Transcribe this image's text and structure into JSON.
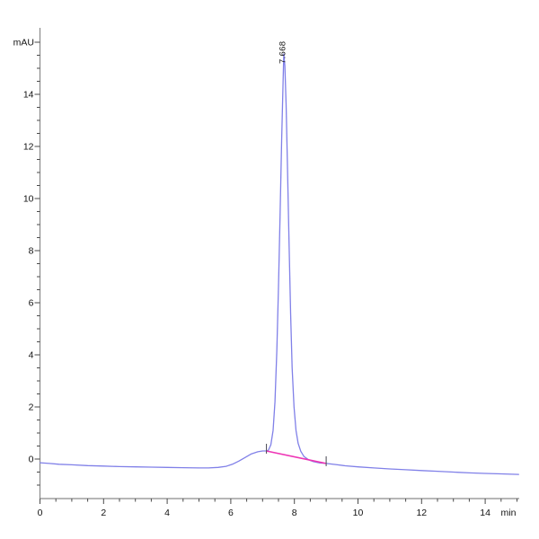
{
  "window": {
    "background_color": "#ffffff",
    "description": "HPLC chromatogram trace with single main peak"
  },
  "chart_data": {
    "type": "line",
    "title": "",
    "xlabel": "min",
    "ylabel": "mAU",
    "xlim": [
      0,
      15.2
    ],
    "ylim": [
      -1.7,
      16.3
    ],
    "x_major_ticks": [
      0,
      2,
      4,
      6,
      8,
      10,
      12,
      14
    ],
    "x_minor_step": 0.5,
    "y_major_ticks": [
      0,
      2,
      4,
      6,
      8,
      10,
      12,
      14
    ],
    "y_top_unlabeled_tick": 16,
    "y_minor_step": 0.5,
    "grid": false,
    "legend": null,
    "colors": {
      "trace": "#8080e8",
      "integration_baseline": "#ee35b5",
      "axis_line": "#8a8a8a",
      "tick": "#4a4a4a",
      "text": "#111111",
      "marker": "#55555f"
    },
    "peaks": [
      {
        "label": "7.668",
        "retention_time_min": 7.668,
        "apex_mau": 15.55
      }
    ],
    "integration": {
      "start_min": 7.12,
      "end_min": 9.0,
      "points": [
        [
          7.12,
          0.31
        ],
        [
          9.0,
          -0.17
        ]
      ]
    },
    "series": [
      {
        "name": "UV signal",
        "points": [
          [
            0.0,
            -0.14
          ],
          [
            0.3,
            -0.17
          ],
          [
            0.6,
            -0.2
          ],
          [
            1.0,
            -0.22
          ],
          [
            1.5,
            -0.25
          ],
          [
            2.0,
            -0.27
          ],
          [
            2.5,
            -0.29
          ],
          [
            3.0,
            -0.3
          ],
          [
            3.5,
            -0.31
          ],
          [
            4.0,
            -0.32
          ],
          [
            4.5,
            -0.33
          ],
          [
            5.0,
            -0.34
          ],
          [
            5.3,
            -0.34
          ],
          [
            5.6,
            -0.32
          ],
          [
            5.85,
            -0.28
          ],
          [
            6.05,
            -0.2
          ],
          [
            6.25,
            -0.08
          ],
          [
            6.45,
            0.06
          ],
          [
            6.65,
            0.2
          ],
          [
            6.85,
            0.28
          ],
          [
            7.0,
            0.31
          ],
          [
            7.1,
            0.31
          ],
          [
            7.18,
            0.33
          ],
          [
            7.26,
            0.55
          ],
          [
            7.33,
            1.1
          ],
          [
            7.39,
            2.2
          ],
          [
            7.45,
            4.2
          ],
          [
            7.5,
            6.6
          ],
          [
            7.55,
            9.4
          ],
          [
            7.6,
            12.2
          ],
          [
            7.64,
            14.3
          ],
          [
            7.668,
            15.55
          ],
          [
            7.7,
            15.1
          ],
          [
            7.74,
            13.6
          ],
          [
            7.78,
            11.4
          ],
          [
            7.83,
            8.4
          ],
          [
            7.88,
            5.6
          ],
          [
            7.93,
            3.5
          ],
          [
            7.99,
            2.0
          ],
          [
            8.05,
            1.1
          ],
          [
            8.12,
            0.6
          ],
          [
            8.2,
            0.3
          ],
          [
            8.3,
            0.1
          ],
          [
            8.45,
            -0.03
          ],
          [
            8.6,
            -0.1
          ],
          [
            8.8,
            -0.15
          ],
          [
            9.0,
            -0.17
          ],
          [
            9.3,
            -0.21
          ],
          [
            9.6,
            -0.26
          ],
          [
            10.0,
            -0.3
          ],
          [
            10.5,
            -0.34
          ],
          [
            11.0,
            -0.38
          ],
          [
            11.5,
            -0.41
          ],
          [
            12.0,
            -0.44
          ],
          [
            12.5,
            -0.47
          ],
          [
            13.0,
            -0.5
          ],
          [
            13.5,
            -0.53
          ],
          [
            14.0,
            -0.55
          ],
          [
            14.5,
            -0.57
          ],
          [
            15.05,
            -0.59
          ]
        ]
      }
    ]
  }
}
